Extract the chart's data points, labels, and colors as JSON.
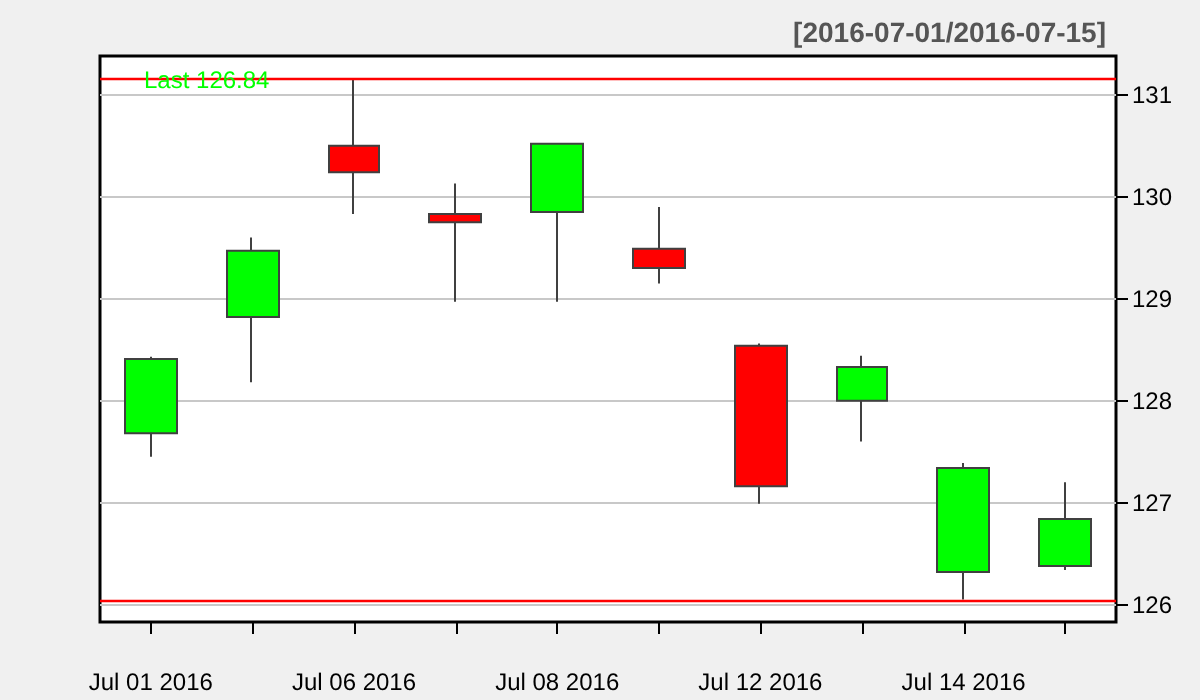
{
  "chart_data": {
    "type": "candlestick",
    "title": "[2016-07-01/2016-07-15]",
    "categories": [
      "Jul 01 2016",
      null,
      "Jul 06 2016",
      null,
      "Jul 08 2016",
      null,
      "Jul 12 2016",
      null,
      "Jul 14 2016",
      null
    ],
    "ohlc": [
      [
        127.68,
        128.43,
        127.45,
        128.41
      ],
      [
        128.82,
        129.6,
        128.18,
        129.47
      ],
      [
        130.5,
        131.16,
        129.83,
        130.24
      ],
      [
        129.83,
        130.13,
        128.97,
        129.75
      ],
      [
        129.85,
        130.52,
        128.97,
        130.52
      ],
      [
        129.49,
        129.9,
        129.15,
        129.3
      ],
      [
        128.54,
        128.56,
        126.99,
        127.16
      ],
      [
        128.0,
        128.44,
        127.6,
        128.33
      ],
      [
        126.32,
        127.39,
        126.05,
        127.34
      ],
      [
        126.38,
        127.2,
        126.34,
        126.84
      ]
    ],
    "colors": [
      "#00ff00",
      "#00ff00",
      "#ff0000",
      "#ff0000",
      "#00ff00",
      "#ff0000",
      "#ff0000",
      "#00ff00",
      "#00ff00",
      "#00ff00"
    ],
    "ylim": [
      125.83,
      131.38
    ],
    "yticks": [
      126,
      127,
      128,
      129,
      130,
      131
    ],
    "grid": "y",
    "ref_lines": [
      {
        "axis": "y",
        "value": 131.16,
        "color": "#ff0000"
      },
      {
        "axis": "y",
        "value": 126.04,
        "color": "#ff0000"
      }
    ],
    "annotations": [
      "Last 126.84"
    ]
  }
}
